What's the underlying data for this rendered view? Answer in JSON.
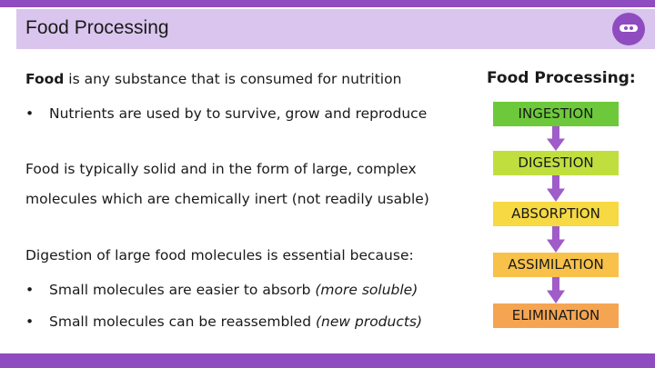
{
  "header": {
    "title": "Food Processing"
  },
  "left": {
    "def_term": "Food",
    "def_rest": " is any substance that is consumed for nutrition",
    "bullet1": "Nutrients are used by to survive, grow and reproduce",
    "para1_line1": "Food is typically solid and in the form of large, complex",
    "para1_line2": "molecules which are chemically inert (not readily usable)",
    "para2": "Digestion of large food molecules is essential because:",
    "bullet2_text": "Small molecules are easier to absorb ",
    "bullet2_italic": "(more soluble)",
    "bullet3_text": "Small molecules can be reassembled ",
    "bullet3_italic": "(new products)",
    "bullet_symbol": "•"
  },
  "right": {
    "title": "Food Processing:",
    "steps": [
      {
        "label": "INGESTION",
        "color": "#6dc93b"
      },
      {
        "label": "DIGESTION",
        "color": "#c0df3f"
      },
      {
        "label": "ABSORPTION",
        "color": "#f6d943"
      },
      {
        "label": "ASSIMILATION",
        "color": "#f7c14a"
      },
      {
        "label": "ELIMINATION",
        "color": "#f5a552"
      }
    ],
    "arrow_color": "#a05cc8"
  },
  "colors": {
    "accent": "#8f4cc0",
    "band": "#d9c5ee"
  }
}
